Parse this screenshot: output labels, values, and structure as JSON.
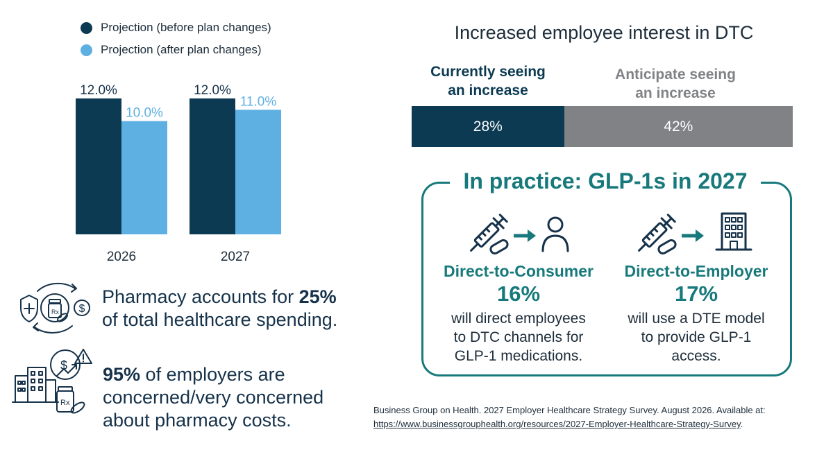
{
  "chart_data": [
    {
      "type": "bar",
      "categories": [
        "2026",
        "2027"
      ],
      "series": [
        {
          "name": "Projection (before plan changes)",
          "values": [
            12.0,
            12.0
          ],
          "labels": [
            "12.0%",
            "12.0%"
          ],
          "color": "#0c3a52"
        },
        {
          "name": "Projection (after plan changes)",
          "values": [
            10.0,
            11.0
          ],
          "labels": [
            "10.0%",
            "11.0%"
          ],
          "color": "#5fb0e2"
        }
      ],
      "ylim": [
        0,
        12
      ],
      "grid": false,
      "legend": "top-left"
    },
    {
      "type": "bar",
      "title": "Increased employee interest in DTC",
      "categories": [
        "Currently seeing an increase",
        "Anticipate seeing an increase"
      ],
      "values": [
        28,
        42
      ],
      "labels": [
        "28%",
        "42%"
      ],
      "colors": [
        "#0c3a52",
        "#808285"
      ],
      "stacked": true,
      "orientation": "horizontal"
    }
  ],
  "stats": {
    "pharmacy": {
      "prefix": "Pharmacy accounts for ",
      "bold": "25%",
      "suffix": "of total healthcare spending."
    },
    "employers": {
      "bold": "95%",
      "line1": " of employers are",
      "line2": "concerned/very concerned",
      "line3": "about pharmacy costs."
    }
  },
  "dtc_labels": {
    "current_line1": "Currently seeing",
    "current_line2": "an increase",
    "anticipate_line1": "Anticipate seeing",
    "anticipate_line2": "an increase"
  },
  "practice": {
    "title": "In practice: GLP-1s in 2027",
    "dtc": {
      "heading": "Direct-to-Consumer",
      "percent": "16%",
      "desc_lines": [
        "will direct employees",
        "to DTC channels for",
        "GLP-1 medications."
      ],
      "icon": "syringe-to-person-icon"
    },
    "dte": {
      "heading": "Direct-to-Employer",
      "percent": "17%",
      "desc_lines": [
        "will use a DTE model",
        "to provide GLP-1",
        "access."
      ],
      "icon": "syringe-to-building-icon"
    }
  },
  "source": {
    "text": "Business Group on Health. 2027 Employer Healthcare Strategy Survey. August 2026. Available at:",
    "link": "https://www.businessgrouphealth.org/resources/2027-Employer-Healthcare-Strategy-Survey",
    "trailing": "."
  },
  "colors": {
    "navy": "#0c3a52",
    "light_blue": "#5fb0e2",
    "gray": "#808285",
    "teal": "#17797b"
  }
}
